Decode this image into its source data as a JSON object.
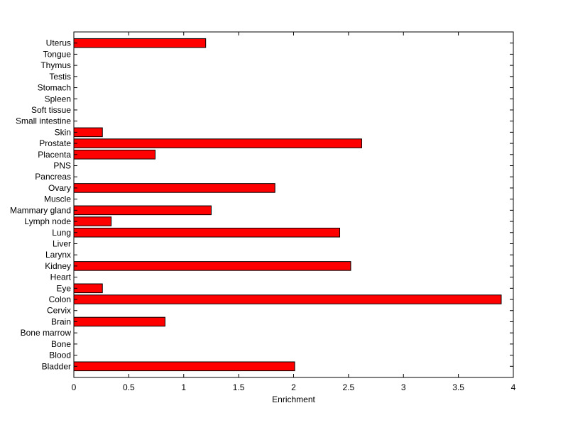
{
  "chart_data": {
    "type": "bar",
    "orientation": "horizontal",
    "title": "",
    "xlabel": "Enrichment",
    "ylabel": "",
    "xlim": [
      0,
      4
    ],
    "x_ticks": [
      "0",
      "0.5",
      "1",
      "1.5",
      "2",
      "2.5",
      "3",
      "3.5",
      "4"
    ],
    "grid": false,
    "legend": "none",
    "bar_color": "#ff0000",
    "bar_edge_color": "#000000",
    "categories": [
      "Bladder",
      "Blood",
      "Bone",
      "Bone marrow",
      "Brain",
      "Cervix",
      "Colon",
      "Eye",
      "Heart",
      "Kidney",
      "Larynx",
      "Liver",
      "Lung",
      "Lymph node",
      "Mammary gland",
      "Muscle",
      "Ovary",
      "Pancreas",
      "PNS",
      "Placenta",
      "Prostate",
      "Skin",
      "Small intestine",
      "Soft tissue",
      "Spleen",
      "Stomach",
      "Testis",
      "Thymus",
      "Tongue",
      "Uterus"
    ],
    "values": [
      2.01,
      0,
      0,
      0,
      0.83,
      0,
      3.89,
      0.26,
      0,
      2.52,
      0,
      0,
      2.42,
      0.34,
      1.25,
      0,
      1.83,
      0,
      0,
      0.74,
      2.62,
      0.26,
      0,
      0,
      0,
      0,
      0,
      0,
      0,
      1.2
    ]
  }
}
